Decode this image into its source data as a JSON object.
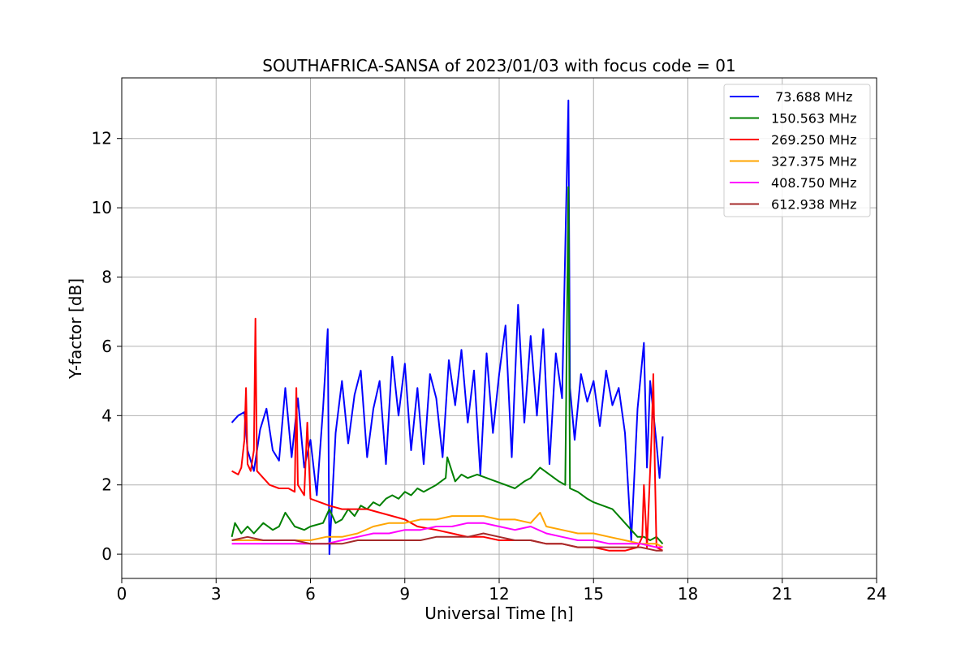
{
  "chart_data": {
    "type": "line",
    "title": "SOUTHAFRICA-SANSA of 2023/01/03 with focus code = 01",
    "xlabel": "Universal Time [h]",
    "ylabel": "Y-factor [dB]",
    "xlim": [
      0,
      24
    ],
    "ylim": [
      -0.7,
      13.75
    ],
    "xticks": [
      0,
      3,
      6,
      9,
      12,
      15,
      18,
      21,
      24
    ],
    "xtick_labels": [
      "0",
      "3",
      "6",
      "9",
      "12",
      "15",
      "18",
      "21",
      "24"
    ],
    "yticks": [
      0,
      2,
      4,
      6,
      8,
      10,
      12
    ],
    "ytick_labels": [
      "0",
      "2",
      "4",
      "6",
      "8",
      "10",
      "12"
    ],
    "grid": true,
    "legend_position": "top-right",
    "series": [
      {
        "name": " 73.688 MHz",
        "color": "#0000ff",
        "points": [
          [
            3.5,
            3.8
          ],
          [
            3.7,
            4.0
          ],
          [
            3.9,
            4.1
          ],
          [
            4.0,
            3.0
          ],
          [
            4.2,
            2.4
          ],
          [
            4.4,
            3.6
          ],
          [
            4.6,
            4.2
          ],
          [
            4.8,
            3.0
          ],
          [
            5.0,
            2.7
          ],
          [
            5.2,
            4.8
          ],
          [
            5.4,
            2.8
          ],
          [
            5.6,
            4.5
          ],
          [
            5.8,
            2.5
          ],
          [
            6.0,
            3.3
          ],
          [
            6.2,
            1.7
          ],
          [
            6.4,
            4.2
          ],
          [
            6.55,
            6.5
          ],
          [
            6.6,
            0.0
          ],
          [
            6.8,
            3.5
          ],
          [
            7.0,
            5.0
          ],
          [
            7.2,
            3.2
          ],
          [
            7.4,
            4.6
          ],
          [
            7.6,
            5.3
          ],
          [
            7.8,
            2.8
          ],
          [
            8.0,
            4.2
          ],
          [
            8.2,
            5.0
          ],
          [
            8.4,
            2.6
          ],
          [
            8.6,
            5.7
          ],
          [
            8.8,
            4.0
          ],
          [
            9.0,
            5.5
          ],
          [
            9.2,
            3.0
          ],
          [
            9.4,
            4.8
          ],
          [
            9.6,
            2.6
          ],
          [
            9.8,
            5.2
          ],
          [
            10.0,
            4.5
          ],
          [
            10.2,
            2.8
          ],
          [
            10.4,
            5.6
          ],
          [
            10.6,
            4.3
          ],
          [
            10.8,
            5.9
          ],
          [
            11.0,
            3.8
          ],
          [
            11.2,
            5.3
          ],
          [
            11.4,
            2.3
          ],
          [
            11.6,
            5.8
          ],
          [
            11.8,
            3.5
          ],
          [
            12.0,
            5.2
          ],
          [
            12.2,
            6.6
          ],
          [
            12.4,
            2.8
          ],
          [
            12.6,
            7.2
          ],
          [
            12.8,
            3.8
          ],
          [
            13.0,
            6.3
          ],
          [
            13.2,
            4.0
          ],
          [
            13.4,
            6.5
          ],
          [
            13.6,
            2.6
          ],
          [
            13.8,
            5.8
          ],
          [
            14.0,
            4.5
          ],
          [
            14.2,
            13.1
          ],
          [
            14.25,
            4.8
          ],
          [
            14.4,
            3.3
          ],
          [
            14.6,
            5.2
          ],
          [
            14.8,
            4.4
          ],
          [
            15.0,
            5.0
          ],
          [
            15.2,
            3.7
          ],
          [
            15.4,
            5.3
          ],
          [
            15.6,
            4.3
          ],
          [
            15.8,
            4.8
          ],
          [
            16.0,
            3.5
          ],
          [
            16.2,
            0.4
          ],
          [
            16.4,
            4.2
          ],
          [
            16.6,
            6.1
          ],
          [
            16.7,
            2.5
          ],
          [
            16.8,
            5.0
          ],
          [
            17.0,
            3.2
          ],
          [
            17.1,
            2.2
          ],
          [
            17.2,
            3.4
          ]
        ]
      },
      {
        "name": "150.563 MHz",
        "color": "#008000",
        "points": [
          [
            3.5,
            0.5
          ],
          [
            3.6,
            0.9
          ],
          [
            3.8,
            0.6
          ],
          [
            4.0,
            0.8
          ],
          [
            4.2,
            0.6
          ],
          [
            4.5,
            0.9
          ],
          [
            4.8,
            0.7
          ],
          [
            5.0,
            0.8
          ],
          [
            5.2,
            1.2
          ],
          [
            5.5,
            0.8
          ],
          [
            5.8,
            0.7
          ],
          [
            6.0,
            0.8
          ],
          [
            6.4,
            0.9
          ],
          [
            6.6,
            1.3
          ],
          [
            6.8,
            0.9
          ],
          [
            7.0,
            1.0
          ],
          [
            7.2,
            1.3
          ],
          [
            7.4,
            1.1
          ],
          [
            7.6,
            1.4
          ],
          [
            7.8,
            1.3
          ],
          [
            8.0,
            1.5
          ],
          [
            8.2,
            1.4
          ],
          [
            8.4,
            1.6
          ],
          [
            8.6,
            1.7
          ],
          [
            8.8,
            1.6
          ],
          [
            9.0,
            1.8
          ],
          [
            9.2,
            1.7
          ],
          [
            9.4,
            1.9
          ],
          [
            9.6,
            1.8
          ],
          [
            9.8,
            1.9
          ],
          [
            10.0,
            2.0
          ],
          [
            10.3,
            2.2
          ],
          [
            10.35,
            2.8
          ],
          [
            10.6,
            2.1
          ],
          [
            10.8,
            2.3
          ],
          [
            11.0,
            2.2
          ],
          [
            11.3,
            2.3
          ],
          [
            11.6,
            2.2
          ],
          [
            11.9,
            2.1
          ],
          [
            12.2,
            2.0
          ],
          [
            12.5,
            1.9
          ],
          [
            12.8,
            2.1
          ],
          [
            13.0,
            2.2
          ],
          [
            13.3,
            2.5
          ],
          [
            13.6,
            2.3
          ],
          [
            13.9,
            2.1
          ],
          [
            14.1,
            2.0
          ],
          [
            14.2,
            10.6
          ],
          [
            14.25,
            1.9
          ],
          [
            14.5,
            1.8
          ],
          [
            14.8,
            1.6
          ],
          [
            15.0,
            1.5
          ],
          [
            15.3,
            1.4
          ],
          [
            15.6,
            1.3
          ],
          [
            15.8,
            1.1
          ],
          [
            16.0,
            0.9
          ],
          [
            16.2,
            0.7
          ],
          [
            16.4,
            0.5
          ],
          [
            16.6,
            0.5
          ],
          [
            16.8,
            0.4
          ],
          [
            17.0,
            0.5
          ],
          [
            17.2,
            0.3
          ]
        ]
      },
      {
        "name": "269.250 MHz",
        "color": "#ff0000",
        "points": [
          [
            3.5,
            2.4
          ],
          [
            3.7,
            2.3
          ],
          [
            3.8,
            2.5
          ],
          [
            3.9,
            3.3
          ],
          [
            3.95,
            4.8
          ],
          [
            4.0,
            2.6
          ],
          [
            4.1,
            2.4
          ],
          [
            4.2,
            3.0
          ],
          [
            4.25,
            6.8
          ],
          [
            4.3,
            2.4
          ],
          [
            4.5,
            2.2
          ],
          [
            4.7,
            2.0
          ],
          [
            5.0,
            1.9
          ],
          [
            5.3,
            1.9
          ],
          [
            5.5,
            1.8
          ],
          [
            5.55,
            4.8
          ],
          [
            5.6,
            2.0
          ],
          [
            5.8,
            1.7
          ],
          [
            5.9,
            3.8
          ],
          [
            6.0,
            1.6
          ],
          [
            6.3,
            1.5
          ],
          [
            6.6,
            1.4
          ],
          [
            7.0,
            1.3
          ],
          [
            7.4,
            1.3
          ],
          [
            7.8,
            1.3
          ],
          [
            8.2,
            1.2
          ],
          [
            8.6,
            1.1
          ],
          [
            9.0,
            1.0
          ],
          [
            9.4,
            0.8
          ],
          [
            10.0,
            0.7
          ],
          [
            10.5,
            0.6
          ],
          [
            11.0,
            0.5
          ],
          [
            11.5,
            0.5
          ],
          [
            12.0,
            0.4
          ],
          [
            12.5,
            0.4
          ],
          [
            13.0,
            0.4
          ],
          [
            13.5,
            0.3
          ],
          [
            14.0,
            0.3
          ],
          [
            14.5,
            0.2
          ],
          [
            15.0,
            0.2
          ],
          [
            15.5,
            0.1
          ],
          [
            16.0,
            0.1
          ],
          [
            16.4,
            0.2
          ],
          [
            16.55,
            0.5
          ],
          [
            16.6,
            2.0
          ],
          [
            16.7,
            0.2
          ],
          [
            16.85,
            3.5
          ],
          [
            16.9,
            5.2
          ],
          [
            16.95,
            2.5
          ],
          [
            17.0,
            0.2
          ],
          [
            17.2,
            0.1
          ]
        ]
      },
      {
        "name": "327.375 MHz",
        "color": "#ffa500",
        "points": [
          [
            3.5,
            0.4
          ],
          [
            4.0,
            0.4
          ],
          [
            4.5,
            0.4
          ],
          [
            5.0,
            0.4
          ],
          [
            5.5,
            0.4
          ],
          [
            6.0,
            0.4
          ],
          [
            6.5,
            0.5
          ],
          [
            7.0,
            0.5
          ],
          [
            7.5,
            0.6
          ],
          [
            8.0,
            0.8
          ],
          [
            8.5,
            0.9
          ],
          [
            9.0,
            0.9
          ],
          [
            9.5,
            1.0
          ],
          [
            10.0,
            1.0
          ],
          [
            10.5,
            1.1
          ],
          [
            11.0,
            1.1
          ],
          [
            11.5,
            1.1
          ],
          [
            12.0,
            1.0
          ],
          [
            12.5,
            1.0
          ],
          [
            13.0,
            0.9
          ],
          [
            13.3,
            1.2
          ],
          [
            13.5,
            0.8
          ],
          [
            14.0,
            0.7
          ],
          [
            14.5,
            0.6
          ],
          [
            15.0,
            0.6
          ],
          [
            15.5,
            0.5
          ],
          [
            16.0,
            0.4
          ],
          [
            16.5,
            0.3
          ],
          [
            17.0,
            0.3
          ],
          [
            17.2,
            0.2
          ]
        ]
      },
      {
        "name": "408.750 MHz",
        "color": "#ff00ff",
        "points": [
          [
            3.5,
            0.3
          ],
          [
            4.0,
            0.3
          ],
          [
            4.5,
            0.3
          ],
          [
            5.0,
            0.3
          ],
          [
            5.5,
            0.3
          ],
          [
            6.0,
            0.3
          ],
          [
            6.5,
            0.3
          ],
          [
            7.0,
            0.4
          ],
          [
            7.5,
            0.5
          ],
          [
            8.0,
            0.6
          ],
          [
            8.5,
            0.6
          ],
          [
            9.0,
            0.7
          ],
          [
            9.5,
            0.7
          ],
          [
            10.0,
            0.8
          ],
          [
            10.5,
            0.8
          ],
          [
            11.0,
            0.9
          ],
          [
            11.5,
            0.9
          ],
          [
            12.0,
            0.8
          ],
          [
            12.5,
            0.7
          ],
          [
            13.0,
            0.8
          ],
          [
            13.5,
            0.6
          ],
          [
            14.0,
            0.5
          ],
          [
            14.5,
            0.4
          ],
          [
            15.0,
            0.4
          ],
          [
            15.5,
            0.3
          ],
          [
            16.0,
            0.3
          ],
          [
            16.5,
            0.3
          ],
          [
            17.0,
            0.2
          ],
          [
            17.2,
            0.2
          ]
        ]
      },
      {
        "name": "612.938 MHz",
        "color": "#a52a2a",
        "points": [
          [
            3.5,
            0.4
          ],
          [
            4.0,
            0.5
          ],
          [
            4.5,
            0.4
          ],
          [
            5.0,
            0.4
          ],
          [
            5.5,
            0.4
          ],
          [
            6.0,
            0.3
          ],
          [
            6.5,
            0.3
          ],
          [
            7.0,
            0.3
          ],
          [
            7.5,
            0.4
          ],
          [
            8.0,
            0.4
          ],
          [
            8.5,
            0.4
          ],
          [
            9.0,
            0.4
          ],
          [
            9.5,
            0.4
          ],
          [
            10.0,
            0.5
          ],
          [
            10.5,
            0.5
          ],
          [
            11.0,
            0.5
          ],
          [
            11.5,
            0.6
          ],
          [
            12.0,
            0.5
          ],
          [
            12.5,
            0.4
          ],
          [
            13.0,
            0.4
          ],
          [
            13.5,
            0.3
          ],
          [
            14.0,
            0.3
          ],
          [
            14.5,
            0.2
          ],
          [
            15.0,
            0.2
          ],
          [
            15.5,
            0.2
          ],
          [
            16.0,
            0.2
          ],
          [
            16.5,
            0.2
          ],
          [
            17.0,
            0.1
          ],
          [
            17.2,
            0.1
          ]
        ]
      }
    ]
  }
}
